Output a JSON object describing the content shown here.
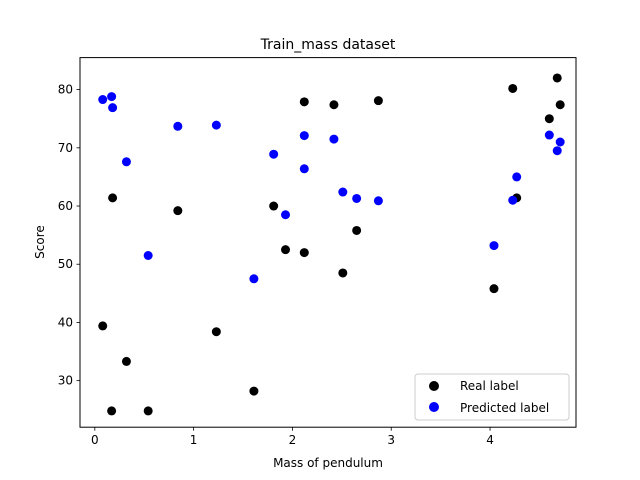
{
  "chart_data": {
    "type": "scatter",
    "title": "Train_mass dataset",
    "xlabel": "Mass of pendulum",
    "ylabel": "Score",
    "xlim": [
      -0.15,
      4.87
    ],
    "ylim": [
      22,
      85.5
    ],
    "xticks": [
      0,
      1,
      2,
      3,
      4
    ],
    "yticks": [
      30,
      40,
      50,
      60,
      70,
      80
    ],
    "grid": false,
    "legend_position": "lower-right",
    "series": [
      {
        "name": "Real label",
        "color": "#000000",
        "points": [
          [
            0.08,
            39.4
          ],
          [
            0.17,
            24.8
          ],
          [
            0.18,
            61.4
          ],
          [
            0.32,
            33.3
          ],
          [
            0.54,
            24.8
          ],
          [
            0.84,
            59.2
          ],
          [
            1.23,
            38.4
          ],
          [
            1.61,
            28.2
          ],
          [
            1.81,
            60.0
          ],
          [
            1.93,
            52.5
          ],
          [
            2.12,
            77.9
          ],
          [
            2.12,
            52.0
          ],
          [
            2.42,
            77.4
          ],
          [
            2.51,
            48.5
          ],
          [
            2.65,
            55.8
          ],
          [
            2.87,
            78.1
          ],
          [
            4.04,
            45.8
          ],
          [
            4.23,
            80.2
          ],
          [
            4.27,
            61.4
          ],
          [
            4.6,
            75.0
          ],
          [
            4.68,
            82.0
          ],
          [
            4.71,
            77.4
          ]
        ]
      },
      {
        "name": "Predicted label",
        "color": "#0000ff",
        "points": [
          [
            0.08,
            78.3
          ],
          [
            0.17,
            78.8
          ],
          [
            0.18,
            76.9
          ],
          [
            0.32,
            67.6
          ],
          [
            0.54,
            51.5
          ],
          [
            0.84,
            73.7
          ],
          [
            1.23,
            73.9
          ],
          [
            1.61,
            47.5
          ],
          [
            1.81,
            68.9
          ],
          [
            1.93,
            58.5
          ],
          [
            2.12,
            72.1
          ],
          [
            2.12,
            66.4
          ],
          [
            2.42,
            71.5
          ],
          [
            2.51,
            62.4
          ],
          [
            2.65,
            61.3
          ],
          [
            2.87,
            60.9
          ],
          [
            4.04,
            53.2
          ],
          [
            4.23,
            61.0
          ],
          [
            4.27,
            65.0
          ],
          [
            4.6,
            72.2
          ],
          [
            4.68,
            69.5
          ],
          [
            4.71,
            71.0
          ]
        ]
      }
    ]
  }
}
